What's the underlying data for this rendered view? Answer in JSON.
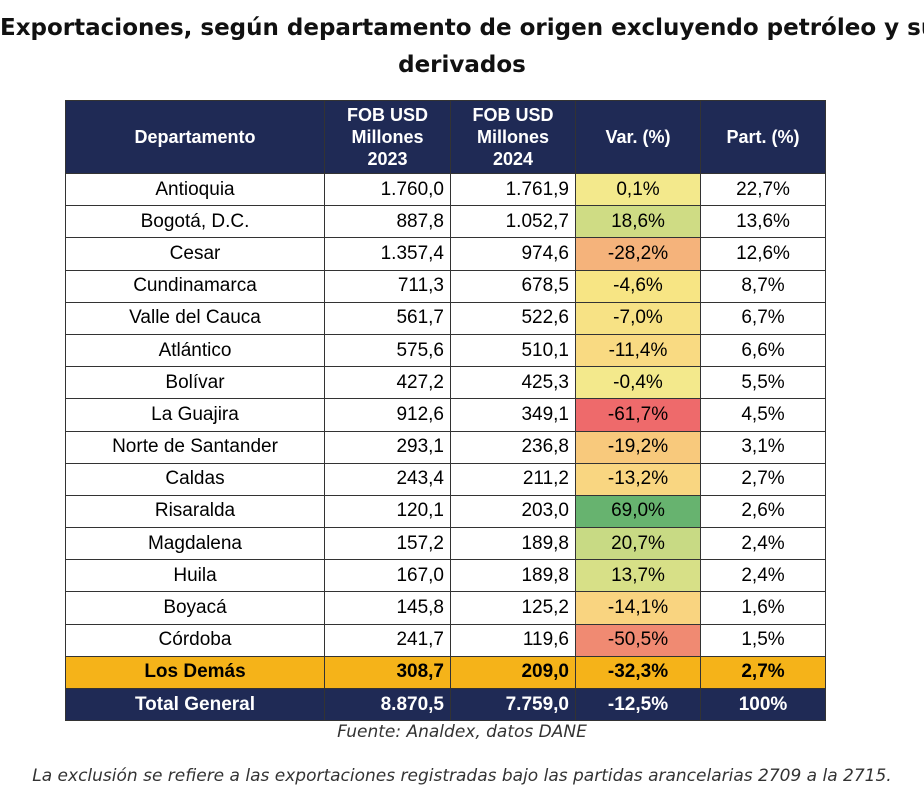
{
  "title": {
    "line1": "Exportaciones, según departamento de origen excluyendo petróleo y sus",
    "line2": "derivados"
  },
  "table": {
    "headers": {
      "departamento": "Departamento",
      "fob2023": "FOB USD Millones 2023",
      "fob2024": "FOB USD Millones 2024",
      "var": "Var. (%)",
      "part": "Part. (%)"
    },
    "rows": [
      {
        "dep": "Antioquia",
        "fob2023": "1.760,0",
        "fob2024": "1.761,9",
        "var": "0,1%",
        "part": "22,7%",
        "var_color": "#f3e98c"
      },
      {
        "dep": "Bogotá, D.C.",
        "fob2023": "887,8",
        "fob2024": "1.052,7",
        "var": "18,6%",
        "part": "13,6%",
        "var_color": "#cfdc84"
      },
      {
        "dep": "Cesar",
        "fob2023": "1.357,4",
        "fob2024": "974,6",
        "var": "-28,2%",
        "part": "12,6%",
        "var_color": "#f5b37b"
      },
      {
        "dep": "Cundinamarca",
        "fob2023": "711,3",
        "fob2024": "678,5",
        "var": "-4,6%",
        "part": "8,7%",
        "var_color": "#f7e584"
      },
      {
        "dep": "Valle del Cauca",
        "fob2023": "561,7",
        "fob2024": "522,6",
        "var": "-7,0%",
        "part": "6,7%",
        "var_color": "#f7e285"
      },
      {
        "dep": "Atlántico",
        "fob2023": "575,6",
        "fob2024": "510,1",
        "var": "-11,4%",
        "part": "6,6%",
        "var_color": "#f9da82"
      },
      {
        "dep": "Bolívar",
        "fob2023": "427,2",
        "fob2024": "425,3",
        "var": "-0,4%",
        "part": "5,5%",
        "var_color": "#f3e98c"
      },
      {
        "dep": "La Guajira",
        "fob2023": "912,6",
        "fob2024": "349,1",
        "var": "-61,7%",
        "part": "4,5%",
        "var_color": "#ee6a6b"
      },
      {
        "dep": "Norte de Santander",
        "fob2023": "293,1",
        "fob2024": "236,8",
        "var": "-19,2%",
        "part": "3,1%",
        "var_color": "#f8c97c"
      },
      {
        "dep": "Caldas",
        "fob2023": "243,4",
        "fob2024": "211,2",
        "var": "-13,2%",
        "part": "2,7%",
        "var_color": "#f9d681"
      },
      {
        "dep": "Risaralda",
        "fob2023": "120,1",
        "fob2024": "203,0",
        "var": "69,0%",
        "part": "2,6%",
        "var_color": "#67b36f"
      },
      {
        "dep": "Magdalena",
        "fob2023": "157,2",
        "fob2024": "189,8",
        "var": "20,7%",
        "part": "2,4%",
        "var_color": "#c8da84"
      },
      {
        "dep": "Huila",
        "fob2023": "167,0",
        "fob2024": "189,8",
        "var": "13,7%",
        "part": "2,4%",
        "var_color": "#d7e087"
      },
      {
        "dep": "Boyacá",
        "fob2023": "145,8",
        "fob2024": "125,2",
        "var": "-14,1%",
        "part": "1,6%",
        "var_color": "#f9d480"
      },
      {
        "dep": "Córdoba",
        "fob2023": "241,7",
        "fob2024": "119,6",
        "var": "-50,5%",
        "part": "1,5%",
        "var_color": "#f08a72"
      }
    ],
    "demas": {
      "dep": "Los Demás",
      "fob2023": "308,7",
      "fob2024": "209,0",
      "var": "-32,3%",
      "part": "2,7%"
    },
    "total": {
      "dep": "Total General",
      "fob2023": "8.870,5",
      "fob2024": "7.759,0",
      "var": "-12,5%",
      "part": "100%"
    }
  },
  "source": "Fuente: Analdex, datos DANE",
  "note": "La exclusión se refiere a las exportaciones registradas bajo las partidas arancelarias 2709 a la 2715."
}
